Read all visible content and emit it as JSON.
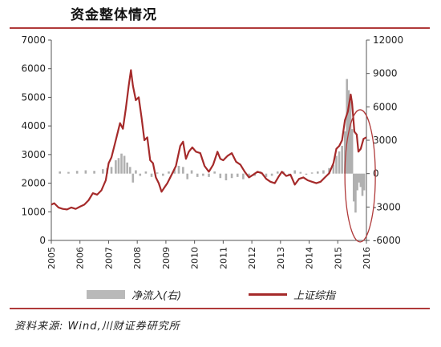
{
  "title": "资金整体情况",
  "legend": {
    "bar_label": "净流入(右)",
    "line_label": "上证综指"
  },
  "source": "资料来源: Wind,川财证券研究所",
  "colors": {
    "line": "#a52a2a",
    "bars": "#b0b0b0",
    "accent_rule": "#b03a3a",
    "highlight_ellipse": "#b03a3a"
  },
  "chart_data": {
    "type": "line",
    "title": "资金整体情况",
    "xlabel": "",
    "ylabel": "",
    "x_ticks": [
      "2005",
      "2006",
      "2007",
      "2008",
      "2009",
      "2010",
      "2011",
      "2012",
      "2013",
      "2014",
      "2015",
      "2016"
    ],
    "left_axis": {
      "ylim": [
        0,
        7000
      ],
      "ticks": [
        0,
        1000,
        2000,
        3000,
        4000,
        5000,
        6000,
        7000
      ]
    },
    "right_axis": {
      "ylim": [
        -6000,
        12000
      ],
      "ticks": [
        -6000,
        -3000,
        0,
        3000,
        6000,
        9000,
        12000
      ]
    },
    "grid": false,
    "legend_position": "bottom",
    "annotation": "ellipse highlighting late 2015 net outflows",
    "series": [
      {
        "name": "上证综指",
        "axis": "left",
        "style": "line",
        "points": [
          [
            2005.0,
            1250
          ],
          [
            2005.1,
            1300
          ],
          [
            2005.25,
            1150
          ],
          [
            2005.4,
            1100
          ],
          [
            2005.55,
            1080
          ],
          [
            2005.7,
            1150
          ],
          [
            2005.85,
            1100
          ],
          [
            2006.0,
            1180
          ],
          [
            2006.15,
            1250
          ],
          [
            2006.3,
            1400
          ],
          [
            2006.45,
            1650
          ],
          [
            2006.6,
            1600
          ],
          [
            2006.75,
            1750
          ],
          [
            2006.9,
            2100
          ],
          [
            2007.0,
            2700
          ],
          [
            2007.1,
            2900
          ],
          [
            2007.25,
            3500
          ],
          [
            2007.4,
            4100
          ],
          [
            2007.5,
            3900
          ],
          [
            2007.6,
            4600
          ],
          [
            2007.7,
            5400
          ],
          [
            2007.78,
            5950
          ],
          [
            2007.85,
            5400
          ],
          [
            2007.95,
            4900
          ],
          [
            2008.05,
            5000
          ],
          [
            2008.15,
            4300
          ],
          [
            2008.25,
            3500
          ],
          [
            2008.35,
            3600
          ],
          [
            2008.45,
            2800
          ],
          [
            2008.55,
            2700
          ],
          [
            2008.65,
            2200
          ],
          [
            2008.75,
            2000
          ],
          [
            2008.85,
            1700
          ],
          [
            2008.95,
            1850
          ],
          [
            2009.05,
            2000
          ],
          [
            2009.2,
            2300
          ],
          [
            2009.35,
            2600
          ],
          [
            2009.5,
            3300
          ],
          [
            2009.6,
            3450
          ],
          [
            2009.7,
            2850
          ],
          [
            2009.8,
            3100
          ],
          [
            2009.92,
            3250
          ],
          [
            2010.05,
            3100
          ],
          [
            2010.2,
            3050
          ],
          [
            2010.35,
            2600
          ],
          [
            2010.5,
            2400
          ],
          [
            2010.65,
            2650
          ],
          [
            2010.8,
            3100
          ],
          [
            2010.9,
            2850
          ],
          [
            2011.0,
            2800
          ],
          [
            2011.15,
            2950
          ],
          [
            2011.3,
            3050
          ],
          [
            2011.45,
            2750
          ],
          [
            2011.6,
            2650
          ],
          [
            2011.75,
            2400
          ],
          [
            2011.9,
            2200
          ],
          [
            2012.05,
            2300
          ],
          [
            2012.2,
            2400
          ],
          [
            2012.35,
            2350
          ],
          [
            2012.5,
            2150
          ],
          [
            2012.65,
            2050
          ],
          [
            2012.8,
            2000
          ],
          [
            2012.95,
            2250
          ],
          [
            2013.05,
            2400
          ],
          [
            2013.2,
            2250
          ],
          [
            2013.35,
            2300
          ],
          [
            2013.5,
            1950
          ],
          [
            2013.65,
            2150
          ],
          [
            2013.8,
            2200
          ],
          [
            2013.95,
            2100
          ],
          [
            2014.1,
            2050
          ],
          [
            2014.25,
            2000
          ],
          [
            2014.4,
            2050
          ],
          [
            2014.55,
            2200
          ],
          [
            2014.7,
            2350
          ],
          [
            2014.85,
            2700
          ],
          [
            2014.95,
            3200
          ],
          [
            2015.05,
            3300
          ],
          [
            2015.15,
            3500
          ],
          [
            2015.25,
            4200
          ],
          [
            2015.35,
            4500
          ],
          [
            2015.45,
            5100
          ],
          [
            2015.5,
            4800
          ],
          [
            2015.58,
            3800
          ],
          [
            2015.66,
            3700
          ],
          [
            2015.72,
            3100
          ],
          [
            2015.8,
            3200
          ],
          [
            2015.9,
            3550
          ],
          [
            2016.0,
            3600
          ]
        ]
      },
      {
        "name": "净流入(右)",
        "axis": "right",
        "style": "bar",
        "points": [
          [
            2005.3,
            200
          ],
          [
            2005.6,
            150
          ],
          [
            2005.9,
            250
          ],
          [
            2006.2,
            300
          ],
          [
            2006.5,
            250
          ],
          [
            2006.8,
            400
          ],
          [
            2006.95,
            500
          ],
          [
            2007.1,
            600
          ],
          [
            2007.25,
            1200
          ],
          [
            2007.35,
            1400
          ],
          [
            2007.45,
            1800
          ],
          [
            2007.55,
            1600
          ],
          [
            2007.65,
            1000
          ],
          [
            2007.75,
            600
          ],
          [
            2007.85,
            -800
          ],
          [
            2007.95,
            300
          ],
          [
            2008.1,
            -200
          ],
          [
            2008.3,
            200
          ],
          [
            2008.5,
            -300
          ],
          [
            2008.7,
            100
          ],
          [
            2008.9,
            -200
          ],
          [
            2009.1,
            200
          ],
          [
            2009.3,
            400
          ],
          [
            2009.45,
            700
          ],
          [
            2009.6,
            600
          ],
          [
            2009.75,
            -500
          ],
          [
            2009.9,
            300
          ],
          [
            2010.1,
            -300
          ],
          [
            2010.3,
            -200
          ],
          [
            2010.5,
            -300
          ],
          [
            2010.7,
            200
          ],
          [
            2010.9,
            -400
          ],
          [
            2011.1,
            -600
          ],
          [
            2011.3,
            -400
          ],
          [
            2011.5,
            -300
          ],
          [
            2011.7,
            -500
          ],
          [
            2011.9,
            -300
          ],
          [
            2012.1,
            -200
          ],
          [
            2012.3,
            200
          ],
          [
            2012.5,
            -300
          ],
          [
            2012.7,
            -200
          ],
          [
            2012.9,
            200
          ],
          [
            2013.1,
            200
          ],
          [
            2013.3,
            -200
          ],
          [
            2013.5,
            300
          ],
          [
            2013.7,
            150
          ],
          [
            2013.9,
            -100
          ],
          [
            2014.1,
            100
          ],
          [
            2014.3,
            200
          ],
          [
            2014.5,
            300
          ],
          [
            2014.7,
            500
          ],
          [
            2014.85,
            800
          ],
          [
            2014.95,
            1600
          ],
          [
            2015.05,
            2000
          ],
          [
            2015.15,
            2500
          ],
          [
            2015.25,
            3800
          ],
          [
            2015.32,
            8500
          ],
          [
            2015.38,
            7500
          ],
          [
            2015.44,
            6500
          ],
          [
            2015.5,
            4000
          ],
          [
            2015.56,
            -2500
          ],
          [
            2015.62,
            -3500
          ],
          [
            2015.68,
            -1500
          ],
          [
            2015.74,
            -800
          ],
          [
            2015.8,
            -1200
          ],
          [
            2015.86,
            -2000
          ],
          [
            2015.92,
            -1500
          ]
        ]
      }
    ]
  }
}
